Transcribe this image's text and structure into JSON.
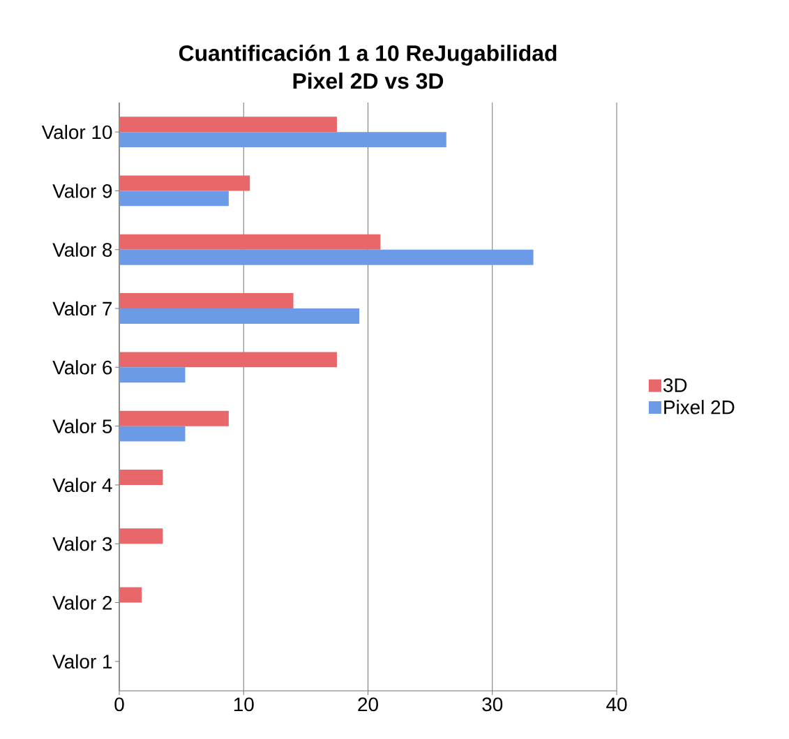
{
  "chart_data": {
    "type": "bar",
    "orientation": "horizontal",
    "title": "Cuantificación 1 a 10 ReJugabilidad",
    "subtitle": "Pixel 2D vs 3D",
    "categories": [
      "Valor 10",
      "Valor 9",
      "Valor 8",
      "Valor 7",
      "Valor 6",
      "Valor 5",
      "Valor 4",
      "Valor 3",
      "Valor 2",
      "Valor 1"
    ],
    "series": [
      {
        "name": "3D",
        "color": "#e8676a",
        "values": [
          17.5,
          10.5,
          21.0,
          14.0,
          17.5,
          8.8,
          3.5,
          3.5,
          1.8,
          0
        ]
      },
      {
        "name": "Pixel 2D",
        "color": "#6b9be6",
        "values": [
          26.3,
          8.8,
          33.3,
          19.3,
          5.3,
          5.3,
          0,
          0,
          0,
          0
        ]
      }
    ],
    "xlim": [
      0,
      40
    ],
    "xticks": [
      0,
      10,
      20,
      30,
      40
    ],
    "grid": "x",
    "legend": "right"
  }
}
